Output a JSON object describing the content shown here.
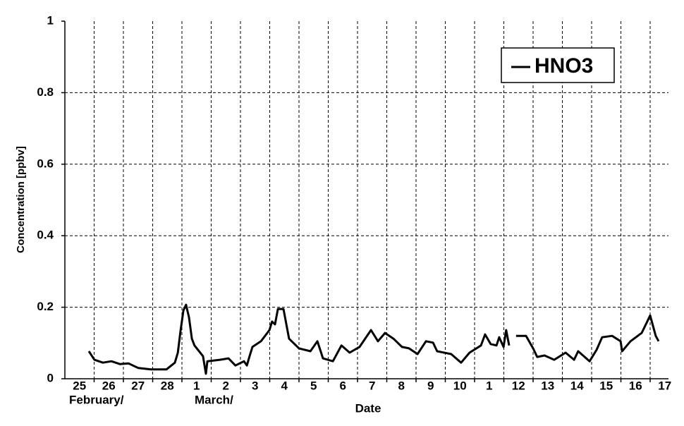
{
  "chart_data": {
    "type": "line",
    "y_label": "Concentration [ppbv]",
    "x_label": "Date",
    "annotations": [
      "February/",
      "March/"
    ],
    "categories": [
      "25",
      "26",
      "27",
      "28",
      "1",
      "2",
      "3",
      "4",
      "5",
      "6",
      "7",
      "8",
      "9",
      "10",
      "1",
      "12",
      "13",
      "14",
      "15",
      "16",
      "17"
    ],
    "xlim": [
      0,
      21
    ],
    "ylim": [
      0,
      1
    ],
    "yticks": [
      0,
      0.2,
      0.4,
      0.6,
      0.8,
      1
    ],
    "grid": true,
    "legend": "top-right",
    "series": [
      {
        "name": "HNO3",
        "color": "#000000",
        "x": [
          0.82,
          1.01,
          1.3,
          1.59,
          1.88,
          2.17,
          2.51,
          2.94,
          3.47,
          3.76,
          3.86,
          3.95,
          4.05,
          4.14,
          4.24,
          4.34,
          4.43,
          4.72,
          4.82,
          4.87,
          5.3,
          5.59,
          5.83,
          6.12,
          6.22,
          6.31,
          6.41,
          6.7,
          6.99,
          7.08,
          7.18,
          7.28,
          7.47,
          7.66,
          8.0,
          8.39,
          8.63,
          8.82,
          9.16,
          9.45,
          9.73,
          10.07,
          10.46,
          10.7,
          10.94,
          11.23,
          11.52,
          11.76,
          12.05,
          12.34,
          12.58,
          12.72,
          13.2,
          13.54,
          13.83,
          14.22,
          14.36,
          14.55,
          14.75,
          14.84,
          14.99,
          15.08,
          15.18,
          15.3,
          15.42,
          15.76,
          16.0,
          16.14,
          16.39,
          16.72,
          17.11,
          17.4,
          17.54,
          17.93,
          18.17,
          18.36,
          18.7,
          18.99,
          19.04,
          19.33,
          19.71,
          20.0,
          20.19,
          20.29
        ],
        "values": [
          0.077,
          0.053,
          0.045,
          0.049,
          0.041,
          0.043,
          0.03,
          0.026,
          0.026,
          0.045,
          0.073,
          0.132,
          0.191,
          0.207,
          0.172,
          0.112,
          0.093,
          0.063,
          0.014,
          0.049,
          0.053,
          0.057,
          0.037,
          0.049,
          0.037,
          0.063,
          0.089,
          0.105,
          0.136,
          0.16,
          0.152,
          0.195,
          0.195,
          0.112,
          0.085,
          0.077,
          0.105,
          0.057,
          0.049,
          0.093,
          0.073,
          0.089,
          0.136,
          0.105,
          0.128,
          0.112,
          0.089,
          0.085,
          0.069,
          0.105,
          0.101,
          0.077,
          0.069,
          0.045,
          0.073,
          0.093,
          0.124,
          0.097,
          0.093,
          0.116,
          0.089,
          0.136,
          0.093,
          null,
          0.12,
          0.12,
          0.085,
          0.061,
          0.065,
          0.053,
          0.073,
          0.053,
          0.077,
          0.049,
          0.081,
          0.116,
          0.12,
          0.105,
          0.077,
          0.105,
          0.128,
          0.177,
          0.12,
          0.105
        ]
      }
    ]
  }
}
